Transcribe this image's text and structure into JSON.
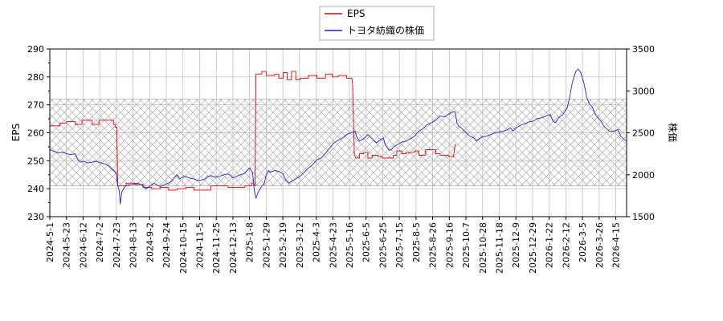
{
  "chart_data": {
    "type": "line",
    "legend": {
      "placement": "top-center",
      "entries": [
        {
          "label": "EPS",
          "color": "#dd0000"
        },
        {
          "label": "トヨタ紡織の株価",
          "color": "#2222cc"
        }
      ]
    },
    "y_left": {
      "label": "EPS",
      "lim": [
        230,
        290
      ],
      "ticks": [
        "230",
        "240",
        "250",
        "260",
        "270",
        "280",
        "290"
      ]
    },
    "y_right": {
      "label": "株価",
      "lim": [
        1500,
        3500
      ],
      "ticks": [
        "1500",
        "2000",
        "2500",
        "3000",
        "3500"
      ]
    },
    "x": {
      "ticks": [
        "2024-5-1",
        "2024-5-23",
        "2024-6-12",
        "2024-7-2",
        "2024-7-23",
        "2024-8-13",
        "2024-9-2",
        "2024-9-24",
        "2024-10-15",
        "2024-11-5",
        "2024-11-25",
        "2024-12-13",
        "2025-1-8",
        "2025-1-29",
        "2025-2-19",
        "2025-3-12",
        "2025-4-3",
        "2025-4-23",
        "2025-5-16",
        "2025-6-5",
        "2025-6-25",
        "2025-7-15",
        "2025-8-5",
        "2025-8-26",
        "2025-9-16",
        "2025-10-7",
        "2025-10-28",
        "2025-11-18",
        "2025-12-9",
        "2025-12-29",
        "2026-1-22",
        "2026-2-12",
        "2026-3-5",
        "2026-3-26",
        "2026-4-15"
      ]
    },
    "band": {
      "axis": "left",
      "range": [
        241,
        272
      ],
      "pattern": "crosshatch"
    },
    "grid": true,
    "series": [
      {
        "name": "EPS",
        "axis": "left",
        "color": "#dd0000",
        "points": [
          [
            0,
            262.5
          ],
          [
            1.2,
            262.5
          ],
          [
            1.2,
            263.5
          ],
          [
            2.0,
            263.5
          ],
          [
            2.0,
            264
          ],
          [
            3.0,
            264
          ],
          [
            3.0,
            263
          ],
          [
            3.8,
            263
          ],
          [
            3.8,
            264.5
          ],
          [
            5.0,
            264.5
          ],
          [
            5.0,
            263
          ],
          [
            5.8,
            263
          ],
          [
            5.8,
            264.5
          ],
          [
            7.5,
            264.5
          ],
          [
            7.5,
            263
          ],
          [
            7.7,
            263
          ],
          [
            7.7,
            262
          ],
          [
            7.9,
            262
          ],
          [
            8.0,
            241
          ],
          [
            9.0,
            241
          ],
          [
            9.0,
            242
          ],
          [
            10.0,
            242
          ],
          [
            10.0,
            241.5
          ],
          [
            11.0,
            241.5
          ],
          [
            11.0,
            240.5
          ],
          [
            12.0,
            240.5
          ],
          [
            12.0,
            240
          ],
          [
            13.0,
            240
          ],
          [
            13.0,
            240.5
          ],
          [
            14.0,
            240.5
          ],
          [
            14.0,
            239.5
          ],
          [
            15.0,
            239.5
          ],
          [
            15.0,
            240
          ],
          [
            16.0,
            240
          ],
          [
            16.0,
            240.5
          ],
          [
            17.0,
            240.5
          ],
          [
            17.0,
            239.5
          ],
          [
            19.0,
            239.5
          ],
          [
            19.0,
            241
          ],
          [
            21.0,
            241
          ],
          [
            21.0,
            240.5
          ],
          [
            23.0,
            240.5
          ],
          [
            23.0,
            241
          ],
          [
            23.8,
            241
          ],
          [
            23.8,
            242
          ],
          [
            24.0,
            242
          ],
          [
            24.2,
            241
          ],
          [
            24.3,
            281
          ],
          [
            25.0,
            281
          ],
          [
            25.0,
            282
          ],
          [
            25.5,
            282
          ],
          [
            25.5,
            280.5
          ],
          [
            26.5,
            280.5
          ],
          [
            26.5,
            281
          ],
          [
            27.0,
            281
          ],
          [
            27.0,
            279.5
          ],
          [
            27.5,
            279.5
          ],
          [
            27.5,
            281.5
          ],
          [
            28.0,
            281.5
          ],
          [
            28.0,
            279
          ],
          [
            28.5,
            279
          ],
          [
            28.5,
            282
          ],
          [
            29.0,
            282
          ],
          [
            29.0,
            279
          ],
          [
            29.5,
            279
          ],
          [
            29.5,
            279.5
          ],
          [
            30.5,
            279.5
          ],
          [
            30.5,
            280.5
          ],
          [
            31.5,
            280.5
          ],
          [
            31.5,
            279.5
          ],
          [
            32.5,
            279.5
          ],
          [
            32.5,
            281
          ],
          [
            33.3,
            281
          ],
          [
            33.3,
            280
          ],
          [
            34.0,
            280
          ],
          [
            34.0,
            280.5
          ],
          [
            35.0,
            280.5
          ],
          [
            35.0,
            279.5
          ],
          [
            35.6,
            279.5
          ],
          [
            35.7,
            278
          ],
          [
            35.9,
            252
          ],
          [
            36.1,
            251
          ],
          [
            36.5,
            251
          ],
          [
            36.5,
            252.5
          ],
          [
            37.0,
            252.5
          ],
          [
            37.0,
            253
          ],
          [
            37.5,
            253
          ],
          [
            37.5,
            251
          ],
          [
            38.0,
            251
          ],
          [
            38.0,
            252
          ],
          [
            38.7,
            252
          ],
          [
            38.7,
            251.5
          ],
          [
            39.2,
            251.5
          ],
          [
            39.2,
            251
          ],
          [
            40.5,
            251
          ],
          [
            40.5,
            252
          ],
          [
            40.9,
            252
          ],
          [
            40.9,
            253.5
          ],
          [
            41.5,
            253.5
          ],
          [
            41.5,
            252.5
          ],
          [
            42.0,
            252.5
          ],
          [
            42.0,
            253
          ],
          [
            43.0,
            253
          ],
          [
            43.0,
            253.5
          ],
          [
            43.5,
            253.5
          ],
          [
            43.5,
            252
          ],
          [
            44.3,
            252
          ],
          [
            44.3,
            254
          ],
          [
            45.5,
            254
          ],
          [
            45.5,
            252.5
          ],
          [
            46.0,
            252.5
          ],
          [
            46.0,
            252
          ],
          [
            47.0,
            252
          ],
          [
            47.0,
            251.5
          ],
          [
            47.6,
            251.5
          ],
          [
            47.7,
            254
          ],
          [
            47.8,
            256
          ]
        ]
      },
      {
        "name": "トヨタ紡織の株価",
        "axis": "right",
        "color": "#2222cc",
        "points": [
          [
            0,
            2300
          ],
          [
            0.5,
            2280
          ],
          [
            1.0,
            2260
          ],
          [
            1.5,
            2270
          ],
          [
            2.0,
            2250
          ],
          [
            2.5,
            2240
          ],
          [
            3.0,
            2250
          ],
          [
            3.3,
            2180
          ],
          [
            3.6,
            2150
          ],
          [
            4.0,
            2160
          ],
          [
            4.5,
            2140
          ],
          [
            5.0,
            2150
          ],
          [
            5.5,
            2160
          ],
          [
            6.0,
            2140
          ],
          [
            6.5,
            2130
          ],
          [
            7.0,
            2100
          ],
          [
            7.5,
            2050
          ],
          [
            7.8,
            2020
          ],
          [
            8.0,
            1880
          ],
          [
            8.2,
            1800
          ],
          [
            8.3,
            1650
          ],
          [
            8.5,
            1800
          ],
          [
            8.8,
            1850
          ],
          [
            9.0,
            1870
          ],
          [
            9.5,
            1880
          ],
          [
            10.0,
            1890
          ],
          [
            10.3,
            1900
          ],
          [
            10.6,
            1890
          ],
          [
            11.0,
            1870
          ],
          [
            11.3,
            1830
          ],
          [
            11.6,
            1850
          ],
          [
            12.0,
            1880
          ],
          [
            12.3,
            1900
          ],
          [
            12.6,
            1880
          ],
          [
            13.0,
            1860
          ],
          [
            13.5,
            1880
          ],
          [
            14.0,
            1900
          ],
          [
            14.3,
            1920
          ],
          [
            14.6,
            1960
          ],
          [
            15.0,
            2000
          ],
          [
            15.3,
            1950
          ],
          [
            15.6,
            1970
          ],
          [
            16.0,
            1980
          ],
          [
            16.5,
            1960
          ],
          [
            17.0,
            1950
          ],
          [
            17.5,
            1930
          ],
          [
            18.0,
            1940
          ],
          [
            18.3,
            1950
          ],
          [
            18.6,
            1980
          ],
          [
            19.0,
            1990
          ],
          [
            19.5,
            1970
          ],
          [
            20.0,
            1980
          ],
          [
            20.5,
            2000
          ],
          [
            21.0,
            2010
          ],
          [
            21.3,
            1990
          ],
          [
            21.6,
            1960
          ],
          [
            22.0,
            1980
          ],
          [
            22.5,
            2000
          ],
          [
            23.0,
            2020
          ],
          [
            23.3,
            2060
          ],
          [
            23.6,
            2080
          ],
          [
            23.9,
            2020
          ],
          [
            24.1,
            1820
          ],
          [
            24.3,
            1720
          ],
          [
            24.6,
            1800
          ],
          [
            24.9,
            1850
          ],
          [
            25.3,
            1900
          ],
          [
            25.5,
            2000
          ],
          [
            25.8,
            2050
          ],
          [
            26.0,
            2030
          ],
          [
            26.5,
            2050
          ],
          [
            27.0,
            2040
          ],
          [
            27.5,
            2010
          ],
          [
            27.8,
            1940
          ],
          [
            28.2,
            1900
          ],
          [
            28.6,
            1930
          ],
          [
            29.0,
            1950
          ],
          [
            29.5,
            1980
          ],
          [
            30.0,
            2030
          ],
          [
            30.5,
            2080
          ],
          [
            31.0,
            2120
          ],
          [
            31.5,
            2180
          ],
          [
            32.0,
            2200
          ],
          [
            32.5,
            2260
          ],
          [
            33.0,
            2320
          ],
          [
            33.5,
            2380
          ],
          [
            34.0,
            2410
          ],
          [
            34.5,
            2440
          ],
          [
            35.0,
            2480
          ],
          [
            35.5,
            2500
          ],
          [
            36.0,
            2520
          ],
          [
            36.2,
            2450
          ],
          [
            36.5,
            2400
          ],
          [
            37.0,
            2430
          ],
          [
            37.5,
            2480
          ],
          [
            38.0,
            2430
          ],
          [
            38.5,
            2380
          ],
          [
            39.0,
            2420
          ],
          [
            39.3,
            2440
          ],
          [
            39.6,
            2350
          ],
          [
            40.0,
            2290
          ],
          [
            40.3,
            2300
          ],
          [
            40.5,
            2330
          ],
          [
            41.0,
            2360
          ],
          [
            41.5,
            2390
          ],
          [
            42.0,
            2400
          ],
          [
            42.5,
            2430
          ],
          [
            43.0,
            2460
          ],
          [
            43.5,
            2520
          ],
          [
            44.0,
            2550
          ],
          [
            44.5,
            2600
          ],
          [
            45.0,
            2620
          ],
          [
            45.5,
            2650
          ],
          [
            46.0,
            2700
          ],
          [
            46.5,
            2690
          ],
          [
            47.0,
            2720
          ],
          [
            47.5,
            2750
          ],
          [
            47.8,
            2750
          ],
          [
            48.0,
            2620
          ],
          [
            48.2,
            2580
          ],
          [
            48.5,
            2560
          ],
          [
            49.0,
            2510
          ],
          [
            49.5,
            2460
          ],
          [
            50.0,
            2440
          ],
          [
            50.3,
            2400
          ],
          [
            50.6,
            2430
          ],
          [
            51.0,
            2450
          ],
          [
            51.5,
            2460
          ],
          [
            52.0,
            2480
          ],
          [
            52.5,
            2500
          ],
          [
            53.0,
            2510
          ],
          [
            53.5,
            2520
          ],
          [
            54.0,
            2540
          ],
          [
            54.3,
            2560
          ],
          [
            54.6,
            2520
          ],
          [
            55.0,
            2560
          ],
          [
            55.5,
            2590
          ],
          [
            56.0,
            2610
          ],
          [
            56.5,
            2630
          ],
          [
            57.0,
            2640
          ],
          [
            57.5,
            2670
          ],
          [
            58.0,
            2680
          ],
          [
            58.5,
            2700
          ],
          [
            59.0,
            2720
          ],
          [
            59.3,
            2640
          ],
          [
            59.6,
            2620
          ],
          [
            60.0,
            2680
          ],
          [
            60.5,
            2720
          ],
          [
            61.0,
            2800
          ],
          [
            61.3,
            2930
          ],
          [
            61.6,
            3100
          ],
          [
            62.0,
            3230
          ],
          [
            62.3,
            3260
          ],
          [
            62.6,
            3220
          ],
          [
            63.0,
            3080
          ],
          [
            63.3,
            2920
          ],
          [
            63.6,
            2850
          ],
          [
            64.0,
            2800
          ],
          [
            64.3,
            2720
          ],
          [
            64.6,
            2680
          ],
          [
            65.0,
            2640
          ],
          [
            65.3,
            2580
          ],
          [
            65.6,
            2550
          ],
          [
            66.0,
            2520
          ],
          [
            66.5,
            2520
          ],
          [
            67.0,
            2540
          ],
          [
            67.3,
            2460
          ],
          [
            67.6,
            2430
          ],
          [
            68.0,
            2400
          ]
        ]
      }
    ]
  }
}
